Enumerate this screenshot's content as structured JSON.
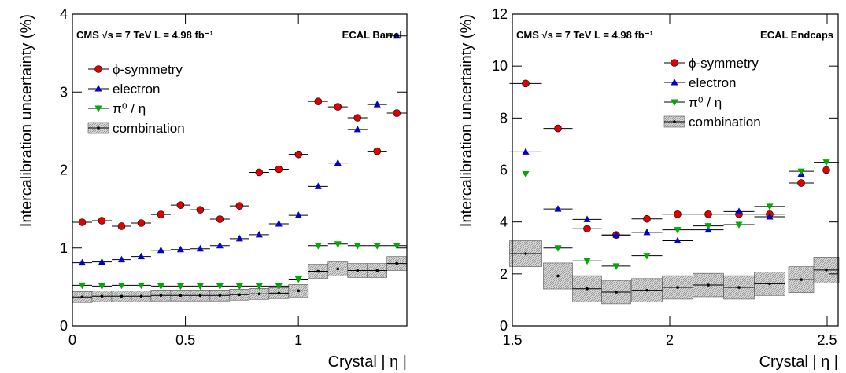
{
  "chart_data": [
    {
      "type": "scatter",
      "annotations": [
        "CMS  √s = 7 TeV   L = 4.98 fb⁻¹",
        "ECAL Barrel"
      ],
      "x_label": "Crystal | η |",
      "y_label": "Intercalibration uncertainty (%)",
      "xlim": [
        0,
        1.48
      ],
      "ylim": [
        0,
        4
      ],
      "xticks": [
        0,
        0.5,
        1
      ],
      "yticks": [
        0,
        1,
        2,
        3,
        4
      ],
      "legend": "upper left",
      "x": [
        0.0435,
        0.1305,
        0.2175,
        0.3045,
        0.3915,
        0.4785,
        0.5655,
        0.6525,
        0.7395,
        0.8265,
        0.9135,
        1.0005,
        1.0875,
        1.1745,
        1.2615,
        1.3485,
        1.4355
      ],
      "series": [
        {
          "name": "ϕ-symmetry",
          "color": "#e00000",
          "marker": "circle",
          "values": [
            1.33,
            1.35,
            1.28,
            1.32,
            1.43,
            1.55,
            1.49,
            1.37,
            1.54,
            1.97,
            2.01,
            2.2,
            2.88,
            2.81,
            2.67,
            2.24,
            2.73
          ]
        },
        {
          "name": "electron",
          "color": "#0000cc",
          "marker": "triangle-up",
          "values": [
            0.81,
            0.82,
            0.85,
            0.89,
            0.97,
            0.98,
            0.99,
            1.03,
            1.12,
            1.17,
            1.31,
            1.42,
            1.79,
            2.09,
            2.52,
            2.84,
            3.72
          ]
        },
        {
          "name": "π⁰ / η",
          "color": "#00aa00",
          "marker": "triangle-down",
          "values": [
            0.52,
            0.51,
            0.52,
            0.52,
            0.51,
            0.51,
            0.51,
            0.51,
            0.51,
            0.51,
            0.51,
            0.6,
            1.03,
            1.05,
            1.03,
            1.03,
            1.03
          ]
        },
        {
          "name": "combination",
          "color": "#000000",
          "marker": "dot",
          "values": [
            0.37,
            0.38,
            0.38,
            0.38,
            0.39,
            0.39,
            0.39,
            0.39,
            0.4,
            0.41,
            0.42,
            0.45,
            0.7,
            0.73,
            0.71,
            0.71,
            0.8
          ],
          "errors": [
            0.07,
            0.07,
            0.07,
            0.07,
            0.07,
            0.07,
            0.07,
            0.07,
            0.07,
            0.07,
            0.07,
            0.08,
            0.09,
            0.09,
            0.09,
            0.09,
            0.09
          ]
        }
      ]
    },
    {
      "type": "scatter",
      "annotations": [
        "CMS  √s = 7 TeV   L = 4.98 fb⁻¹",
        "ECAL Endcaps"
      ],
      "x_label": "Crystal | η |",
      "y_label": "Intercalibration uncertainty (%)",
      "xlim": [
        1.5,
        2.535
      ],
      "ylim": [
        0,
        12
      ],
      "xticks": [
        1.5,
        2,
        2.5
      ],
      "yticks": [
        0,
        2,
        4,
        6,
        8,
        10,
        12
      ],
      "legend": "upper right",
      "x": [
        1.5425,
        1.645,
        1.7375,
        1.83,
        1.9275,
        2.025,
        2.1225,
        2.22,
        2.3175,
        2.4175,
        2.4975
      ],
      "series": [
        {
          "name": "ϕ-symmetry",
          "color": "#e00000",
          "marker": "circle",
          "values": [
            9.33,
            7.6,
            3.74,
            3.5,
            4.12,
            4.3,
            4.3,
            4.3,
            4.3,
            5.5,
            6.0
          ]
        },
        {
          "name": "electron",
          "color": "#0000cc",
          "marker": "triangle-up",
          "values": [
            6.7,
            4.5,
            4.1,
            3.5,
            3.6,
            3.28,
            3.7,
            4.4,
            4.2,
            5.85,
            null
          ]
        },
        {
          "name": "π⁰ / η",
          "color": "#00aa00",
          "marker": "triangle-down",
          "values": [
            5.85,
            3.0,
            2.5,
            2.3,
            2.7,
            3.7,
            3.85,
            3.9,
            4.6,
            5.95,
            6.3
          ]
        },
        {
          "name": "combination",
          "color": "#000000",
          "marker": "dot",
          "values": [
            2.78,
            1.92,
            1.43,
            1.3,
            1.37,
            1.48,
            1.57,
            1.48,
            1.62,
            1.78,
            2.15
          ],
          "errors": [
            0.5,
            0.5,
            0.5,
            0.45,
            0.45,
            0.45,
            0.45,
            0.45,
            0.45,
            0.5,
            0.5
          ]
        }
      ]
    }
  ]
}
